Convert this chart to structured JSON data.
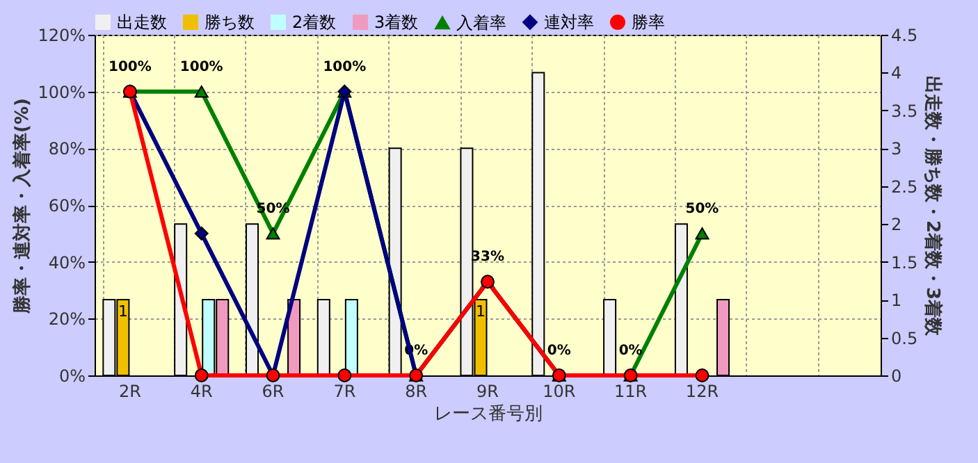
{
  "chart_data": {
    "type": "bar",
    "xlabel": "レース番号別",
    "ylabel": "勝率・連対率・入着率(%)",
    "y2label": "出走数・勝ち数・2着数・3着数",
    "categories": [
      "2R",
      "4R",
      "6R",
      "7R",
      "8R",
      "9R",
      "10R",
      "11R",
      "12R",
      null,
      null
    ],
    "series": [
      {
        "name": "出走数",
        "axis": "y2",
        "color": "#f0f0f0",
        "values": [
          1,
          2,
          2,
          1,
          3,
          3,
          4,
          1,
          2,
          null,
          null
        ]
      },
      {
        "name": "勝ち数",
        "axis": "y2",
        "color": "#f0c000",
        "values": [
          1,
          null,
          null,
          null,
          null,
          1,
          null,
          null,
          null,
          null,
          null
        ],
        "value_labels": [
          "1",
          null,
          null,
          null,
          null,
          "1",
          null,
          null,
          null,
          null,
          null
        ]
      },
      {
        "name": "2着数",
        "axis": "y2",
        "color": "#c0ffff",
        "values": [
          null,
          1,
          null,
          1,
          null,
          null,
          null,
          null,
          null,
          null,
          null
        ]
      },
      {
        "name": "3着数",
        "axis": "y2",
        "color": "#f09ac0",
        "values": [
          null,
          1,
          1,
          null,
          null,
          null,
          null,
          null,
          1,
          null,
          null
        ]
      },
      {
        "name": "入着率",
        "type": "line",
        "marker": "triangle",
        "color": "#008000",
        "values": [
          100,
          100,
          50,
          100,
          0,
          33,
          0,
          0,
          50,
          null,
          null
        ],
        "value_labels": [
          "100%",
          "100%",
          "50%",
          "100%",
          "0%",
          "33%",
          "0%",
          "0%",
          "50%",
          null,
          null
        ]
      },
      {
        "name": "連対率",
        "type": "line",
        "marker": "diamond",
        "color": "#000080",
        "values": [
          100,
          50,
          0,
          100,
          0,
          33,
          0,
          0,
          0,
          null,
          null
        ]
      },
      {
        "name": "勝率",
        "type": "line",
        "marker": "circle",
        "color": "#ff0000",
        "values": [
          100,
          0,
          0,
          0,
          0,
          33,
          0,
          0,
          0,
          null,
          null
        ]
      }
    ],
    "ylim": [
      0,
      120
    ],
    "yticks": [
      {
        "value": 0,
        "label": "0%"
      },
      {
        "value": 20,
        "label": "20%"
      },
      {
        "value": 40,
        "label": "40%"
      },
      {
        "value": 60,
        "label": "60%"
      },
      {
        "value": 80,
        "label": "80%"
      },
      {
        "value": 100,
        "label": "100%"
      },
      {
        "value": 120,
        "label": "120%"
      }
    ],
    "y2lim": [
      0,
      4.5
    ],
    "y2ticks": [
      0,
      0.5,
      1,
      1.5,
      2,
      2.5,
      3,
      3.5,
      4,
      4.5
    ],
    "grid": true,
    "legend": "top",
    "line_style": "solid"
  }
}
